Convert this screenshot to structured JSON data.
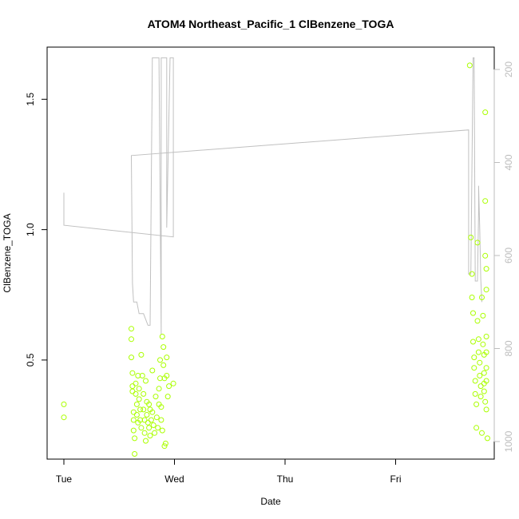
{
  "chart_data": {
    "type": "scatter",
    "title": "ATOM4 Northeast_Pacific_1 ClBenzene_TOGA",
    "xlabel": "Date",
    "ylabel": "ClBenzene_TOGA",
    "x_ticks": [
      {
        "label": "Tue",
        "day": 0
      },
      {
        "label": "Wed",
        "day": 1
      },
      {
        "label": "Thu",
        "day": 2
      },
      {
        "label": "Fri",
        "day": 3
      }
    ],
    "xlim_days": [
      -0.2,
      3.9
    ],
    "ylim": [
      0.12,
      1.7
    ],
    "y_ticks": [
      0.5,
      1.0,
      1.5
    ],
    "y2_ticks": [
      200,
      400,
      600,
      800,
      1000
    ],
    "y2lim": [
      1042,
      173
    ],
    "grid": false,
    "colors": {
      "points": "#aaff00",
      "line": "#c0c0c0",
      "axis": "#000000",
      "right_axis": "#bdbdbd"
    },
    "series": [
      {
        "type": "scatter",
        "points": [
          [
            0.0,
            0.33
          ],
          [
            0.0,
            0.28
          ],
          [
            0.61,
            0.62
          ],
          [
            0.61,
            0.58
          ],
          [
            0.61,
            0.51
          ],
          [
            0.62,
            0.45
          ],
          [
            0.62,
            0.4
          ],
          [
            0.62,
            0.38
          ],
          [
            0.63,
            0.3
          ],
          [
            0.63,
            0.27
          ],
          [
            0.63,
            0.23
          ],
          [
            0.64,
            0.2
          ],
          [
            0.64,
            0.14
          ],
          [
            0.65,
            0.41
          ],
          [
            0.65,
            0.37
          ],
          [
            0.66,
            0.33
          ],
          [
            0.66,
            0.29
          ],
          [
            0.67,
            0.26
          ],
          [
            0.67,
            0.44
          ],
          [
            0.68,
            0.39
          ],
          [
            0.68,
            0.35
          ],
          [
            0.69,
            0.31
          ],
          [
            0.69,
            0.27
          ],
          [
            0.7,
            0.24
          ],
          [
            0.7,
            0.52
          ],
          [
            0.71,
            0.44
          ],
          [
            0.72,
            0.37
          ],
          [
            0.72,
            0.31
          ],
          [
            0.73,
            0.27
          ],
          [
            0.73,
            0.22
          ],
          [
            0.74,
            0.19
          ],
          [
            0.74,
            0.42
          ],
          [
            0.75,
            0.34
          ],
          [
            0.75,
            0.29
          ],
          [
            0.76,
            0.26
          ],
          [
            0.77,
            0.33
          ],
          [
            0.77,
            0.24
          ],
          [
            0.78,
            0.31
          ],
          [
            0.78,
            0.21
          ],
          [
            0.79,
            0.27
          ],
          [
            0.8,
            0.46
          ],
          [
            0.8,
            0.3
          ],
          [
            0.81,
            0.25
          ],
          [
            0.82,
            0.22
          ],
          [
            0.83,
            0.36
          ],
          [
            0.84,
            0.28
          ],
          [
            0.85,
            0.24
          ],
          [
            0.86,
            0.39
          ],
          [
            0.86,
            0.33
          ],
          [
            0.87,
            0.5
          ],
          [
            0.87,
            0.43
          ],
          [
            0.88,
            0.32
          ],
          [
            0.88,
            0.27
          ],
          [
            0.89,
            0.23
          ],
          [
            0.89,
            0.59
          ],
          [
            0.9,
            0.55
          ],
          [
            0.9,
            0.48
          ],
          [
            0.91,
            0.43
          ],
          [
            0.91,
            0.17
          ],
          [
            0.92,
            0.18
          ],
          [
            0.93,
            0.51
          ],
          [
            0.93,
            0.44
          ],
          [
            0.94,
            0.36
          ],
          [
            0.95,
            0.4
          ],
          [
            0.99,
            0.41
          ],
          [
            3.67,
            1.63
          ],
          [
            3.68,
            0.97
          ],
          [
            3.69,
            0.83
          ],
          [
            3.69,
            0.74
          ],
          [
            3.7,
            0.68
          ],
          [
            3.7,
            0.57
          ],
          [
            3.71,
            0.51
          ],
          [
            3.71,
            0.47
          ],
          [
            3.72,
            0.42
          ],
          [
            3.72,
            0.37
          ],
          [
            3.73,
            0.33
          ],
          [
            3.73,
            0.24
          ],
          [
            3.74,
            0.95
          ],
          [
            3.74,
            0.65
          ],
          [
            3.75,
            0.58
          ],
          [
            3.75,
            0.53
          ],
          [
            3.76,
            0.49
          ],
          [
            3.76,
            0.44
          ],
          [
            3.77,
            0.4
          ],
          [
            3.77,
            0.36
          ],
          [
            3.78,
            0.22
          ],
          [
            3.78,
            0.74
          ],
          [
            3.79,
            0.67
          ],
          [
            3.79,
            0.56
          ],
          [
            3.8,
            0.52
          ],
          [
            3.8,
            0.45
          ],
          [
            3.8,
            0.41
          ],
          [
            3.8,
            0.38
          ],
          [
            3.81,
            0.34
          ],
          [
            3.81,
            1.45
          ],
          [
            3.81,
            1.11
          ],
          [
            3.81,
            0.9
          ],
          [
            3.82,
            0.85
          ],
          [
            3.82,
            0.77
          ],
          [
            3.82,
            0.59
          ],
          [
            3.82,
            0.53
          ],
          [
            3.82,
            0.47
          ],
          [
            3.82,
            0.42
          ],
          [
            3.82,
            0.31
          ],
          [
            3.83,
            0.2
          ]
        ]
      },
      {
        "type": "line",
        "axis": "right",
        "points": [
          [
            0.0,
            465
          ],
          [
            0.0,
            535
          ],
          [
            0.99,
            560
          ],
          [
            0.99,
            175
          ],
          [
            0.96,
            175
          ],
          [
            0.93,
            540
          ],
          [
            0.93,
            175
          ],
          [
            0.88,
            175
          ],
          [
            0.88,
            770
          ],
          [
            0.86,
            175
          ],
          [
            0.8,
            175
          ],
          [
            0.78,
            750
          ],
          [
            0.76,
            750
          ],
          [
            0.72,
            725
          ],
          [
            0.68,
            725
          ],
          [
            0.66,
            700
          ],
          [
            0.63,
            700
          ],
          [
            0.62,
            660
          ],
          [
            0.61,
            385
          ],
          [
            0.61,
            385
          ],
          [
            3.66,
            330
          ],
          [
            3.66,
            640
          ],
          [
            3.68,
            640
          ],
          [
            3.7,
            175
          ],
          [
            3.71,
            175
          ],
          [
            3.72,
            655
          ],
          [
            3.74,
            655
          ],
          [
            3.75,
            505
          ],
          [
            3.75,
            450
          ],
          [
            3.76,
            540
          ],
          [
            3.77,
            650
          ],
          [
            3.78,
            700
          ]
        ]
      }
    ]
  }
}
